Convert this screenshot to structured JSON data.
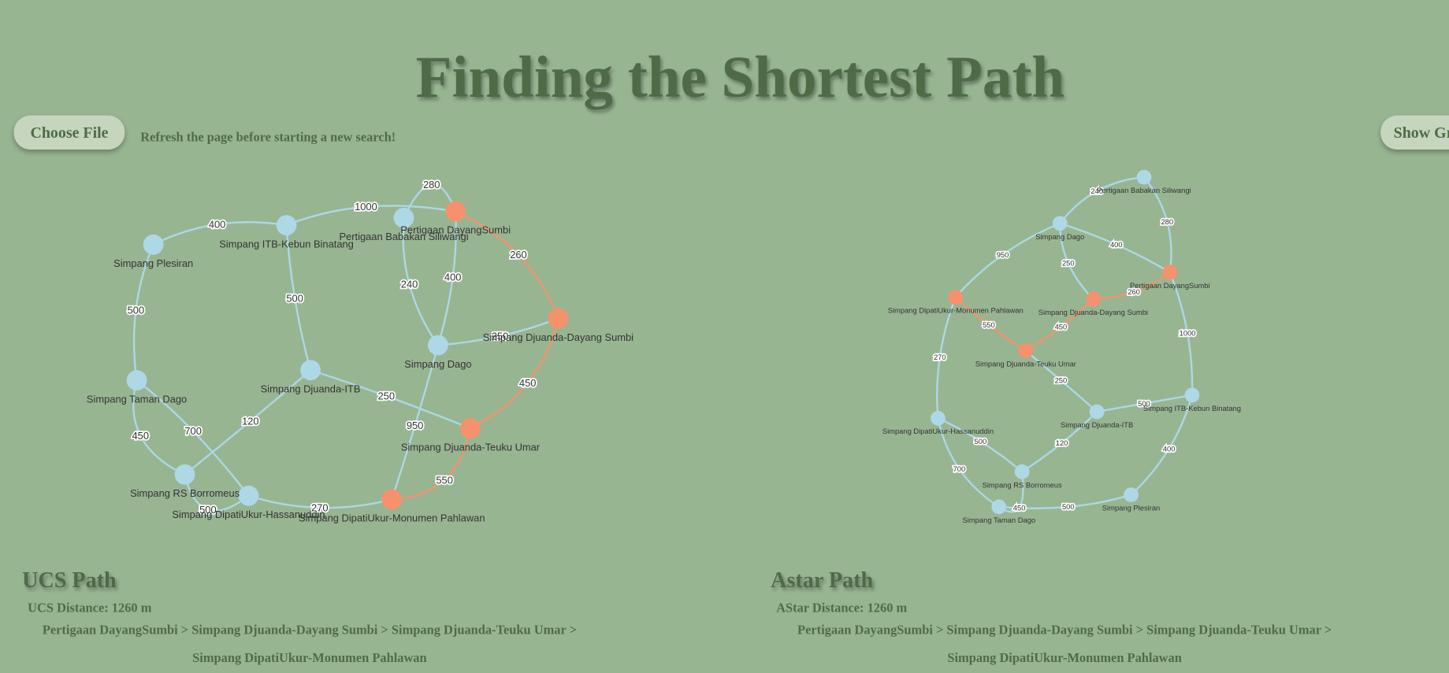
{
  "header": {
    "title": "Finding the Shortest Path"
  },
  "controls": {
    "choose_file": "Choose File",
    "notice": "Refresh the page before starting a new search!",
    "show_graph": "Show Graph"
  },
  "graph": {
    "nodes": [
      "Simpang Plesiran",
      "Simpang ITB-Kebun Binatang",
      "Pertigaan Babakan Siliwangi",
      "Pertigaan DayangSumbi",
      "Simpang Djuanda-Dayang Sumbi",
      "Simpang Dago",
      "Simpang Djuanda-ITB",
      "Simpang Djuanda-Teuku Umar",
      "Simpang Taman Dago",
      "Simpang RS Borromeus",
      "Simpang DipatiUkur-Hassanuddin",
      "Simpang DipatiUkur-Monumen Pahlawan"
    ],
    "edge_weights": [
      400,
      1000,
      280,
      260,
      240,
      400,
      250,
      450,
      500,
      250,
      950,
      550,
      500,
      450,
      700,
      120,
      500,
      270
    ]
  },
  "results": [
    {
      "heading": "UCS Path",
      "distance": "UCS Distance: 1260 m",
      "route": [
        "Pertigaan DayangSumbi > Simpang Djuanda-Dayang Sumbi > Simpang Djuanda-Teuku Umar >",
        "Simpang DipatiUkur-Monumen Pahlawan"
      ]
    },
    {
      "heading": "Astar Path",
      "distance": "AStar Distance: 1260 m",
      "route": [
        "Pertigaan DayangSumbi > Simpang Djuanda-Dayang Sumbi > Simpang Djuanda-Teuku Umar >",
        "Simpang DipatiUkur-Monumen Pahlawan"
      ]
    }
  ]
}
